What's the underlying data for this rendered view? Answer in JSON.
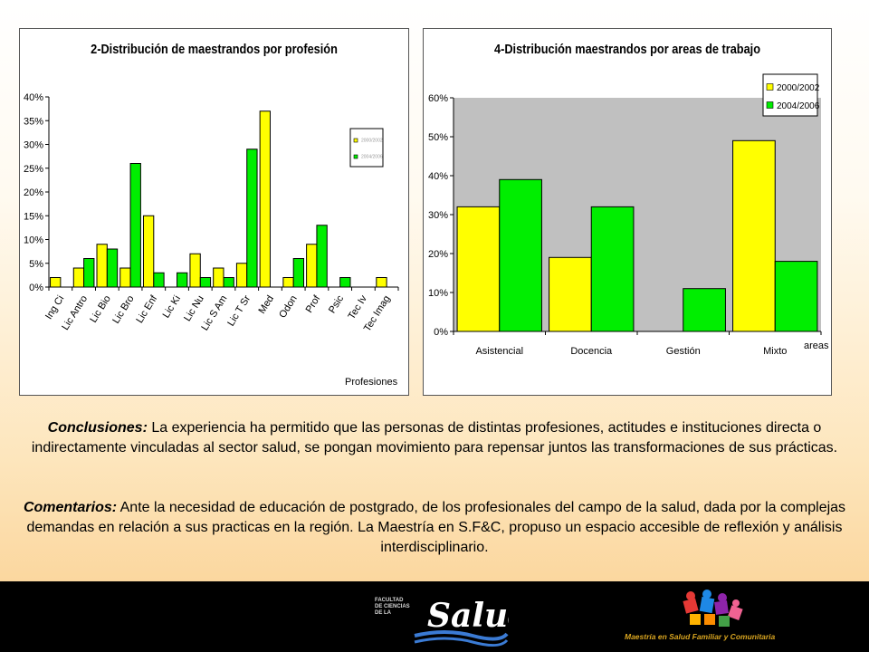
{
  "chart_data": [
    {
      "type": "bar",
      "title": "2-Distribución de maestrandos por profesión",
      "xlabel": "Profesiones",
      "ylabel": "",
      "ylim": [
        0,
        40
      ],
      "yticks": [
        "0%",
        "5%",
        "10%",
        "15%",
        "20%",
        "25%",
        "30%",
        "35%",
        "40%"
      ],
      "grid": false,
      "legend_position": "right",
      "categories": [
        "Ing Ci",
        "Lic Antro",
        "Lic Bio",
        "Lic Bro",
        "Lic Enf",
        "Lic Ki",
        "Lic Nu",
        "Lic S Am",
        "Lic T Sr",
        "Med",
        "Odon",
        "Prof",
        "Psic",
        "Tec Iv",
        "Tec Imag"
      ],
      "series": [
        {
          "name": "2000/2002",
          "color": "#ffff00",
          "values": [
            2,
            4,
            9,
            4,
            15,
            0,
            7,
            4,
            5,
            37,
            2,
            9,
            0,
            0,
            2
          ]
        },
        {
          "name": "2004/2006",
          "color": "#00ee00",
          "values": [
            0,
            6,
            8,
            26,
            3,
            3,
            2,
            2,
            29,
            0,
            6,
            13,
            2,
            0,
            0
          ]
        }
      ]
    },
    {
      "type": "bar",
      "title": "4-Distribución maestrandos por areas de trabajo",
      "xlabel": "areas",
      "ylabel": "",
      "ylim": [
        0,
        60
      ],
      "yticks": [
        "0%",
        "10%",
        "20%",
        "30%",
        "40%",
        "50%",
        "60%"
      ],
      "grid": false,
      "legend_position": "top-right",
      "categories": [
        "Asistencial",
        "Docencia",
        "Gestión",
        "Mixto"
      ],
      "series": [
        {
          "name": "2000/2002",
          "color": "#ffff00",
          "values": [
            32,
            19,
            0,
            49
          ]
        },
        {
          "name": "2004/2006",
          "color": "#00ee00",
          "values": [
            39,
            32,
            11,
            18
          ]
        }
      ]
    }
  ],
  "text": {
    "conclusions_label": "Conclusiones:",
    "conclusions_body": " La experiencia ha permitido que las personas de distintas profesiones, actitudes e instituciones directa o indirectamente vinculadas al sector salud, se pongan movimiento para repensar juntos las transformaciones de sus prácticas.",
    "comments_label": "Comentarios:",
    "comments_body": " Ante la necesidad de educación de postgrado, de los profesionales del campo de la salud, dada por la complejas demandas en relación a sus practicas en la región. La Maestría en S.F&C, propuso un espacio accesible de reflexión y análisis interdisciplinario."
  },
  "footer": {
    "faculty_text": "FACULTAD\nDE CIENCIAS\nDE LA",
    "faculty_logo_word": "Salud",
    "program_text": "Maestría en Salud Familiar y Comunitaria"
  },
  "colors": {
    "yellow": "#ffff00",
    "green": "#00ee00",
    "plot_gray": "#c0c0c0",
    "footer_bg": "#000000",
    "logo_gold": "#d9a520"
  }
}
